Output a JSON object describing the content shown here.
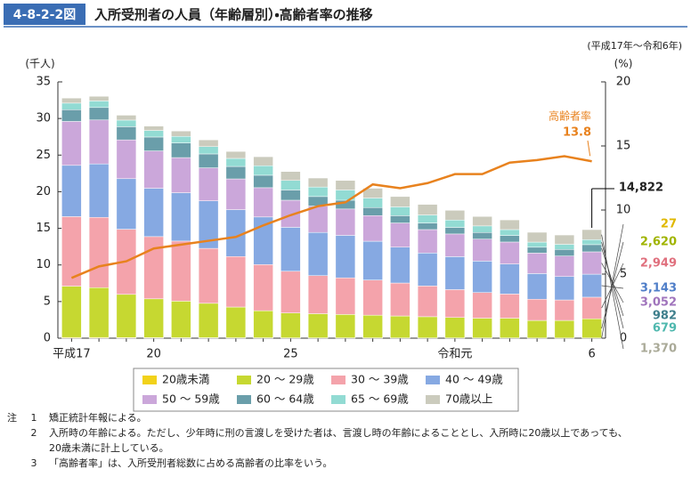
{
  "chart_data": {
    "type": "stacked_bar_line",
    "figure_number": "4-8-2-2図",
    "title": "入所受刑者の人員（年齢層別）・高齢者率の推移",
    "subtitle": "(平成17年～令和6年)",
    "y_label": "(千人)",
    "y2_label": "(%)",
    "categories": [
      "平成17",
      null,
      null,
      "20",
      null,
      null,
      null,
      null,
      "25",
      null,
      null,
      null,
      null,
      null,
      "令和元",
      null,
      null,
      null,
      null,
      "6"
    ],
    "ylim": [
      0,
      35
    ],
    "yticks": [
      0,
      5,
      10,
      15,
      20,
      25,
      30,
      35
    ],
    "y2lim": [
      0,
      20
    ],
    "y2ticks": [
      0,
      5,
      10,
      15,
      20
    ],
    "series": [
      {
        "name": "20歳未満",
        "color": "#f2d21a",
        "label_color": "#e0b800",
        "values": [
          0.1,
          0.1,
          0.08,
          0.07,
          0.06,
          0.06,
          0.05,
          0.05,
          0.04,
          0.04,
          0.04,
          0.04,
          0.03,
          0.03,
          0.03,
          0.03,
          0.03,
          0.02,
          0.02,
          0.027
        ],
        "value_labels": [
          null,
          null,
          null,
          null,
          null,
          null,
          null,
          null,
          null,
          null,
          null,
          null,
          null,
          null,
          null,
          null,
          null,
          null,
          null,
          "27"
        ]
      },
      {
        "name": "20 ～ 29歳",
        "color": "#c6d831",
        "label_color": "#a0b400",
        "values": [
          7.0,
          6.8,
          5.9,
          5.3,
          5.0,
          4.7,
          4.2,
          3.7,
          3.4,
          3.3,
          3.2,
          3.1,
          3.0,
          2.9,
          2.8,
          2.7,
          2.7,
          2.4,
          2.4,
          2.62
        ],
        "value_labels": [
          null,
          null,
          null,
          null,
          null,
          null,
          null,
          null,
          null,
          null,
          null,
          null,
          null,
          null,
          null,
          null,
          null,
          null,
          null,
          "2,620"
        ]
      },
      {
        "name": "30 ～ 39歳",
        "color": "#f4a3ab",
        "label_color": "#e0707e",
        "values": [
          9.5,
          9.6,
          8.9,
          8.5,
          8.2,
          7.5,
          6.9,
          6.3,
          5.7,
          5.2,
          5.0,
          4.8,
          4.5,
          4.2,
          3.8,
          3.5,
          3.3,
          2.9,
          2.8,
          2.949
        ],
        "value_labels": [
          null,
          null,
          null,
          null,
          null,
          null,
          null,
          null,
          null,
          null,
          null,
          null,
          null,
          null,
          null,
          null,
          null,
          null,
          null,
          "2,949"
        ]
      },
      {
        "name": "40 ～ 49歳",
        "color": "#86a9e2",
        "label_color": "#4f7ec8",
        "values": [
          7.0,
          7.3,
          6.9,
          6.6,
          6.6,
          6.5,
          6.4,
          6.5,
          6.0,
          5.9,
          5.8,
          5.3,
          4.9,
          4.5,
          4.5,
          4.3,
          4.1,
          3.5,
          3.2,
          3.143
        ],
        "value_labels": [
          null,
          null,
          null,
          null,
          null,
          null,
          null,
          null,
          null,
          null,
          null,
          null,
          null,
          null,
          null,
          null,
          null,
          null,
          null,
          "3,143"
        ]
      },
      {
        "name": "50 ～ 59歳",
        "color": "#cba7da",
        "label_color": "#a074bc",
        "values": [
          6.0,
          6.0,
          5.3,
          5.1,
          4.8,
          4.5,
          4.2,
          4.0,
          3.7,
          3.6,
          3.6,
          3.5,
          3.3,
          3.2,
          3.1,
          3.0,
          3.0,
          2.8,
          2.8,
          3.052
        ],
        "value_labels": [
          null,
          null,
          null,
          null,
          null,
          null,
          null,
          null,
          null,
          null,
          null,
          null,
          null,
          null,
          null,
          null,
          null,
          null,
          null,
          "3,052"
        ]
      },
      {
        "name": "60 ～ 64歳",
        "color": "#6a9eaa",
        "label_color": "#3f7f8c",
        "values": [
          1.6,
          1.7,
          1.8,
          1.9,
          2.0,
          1.9,
          1.7,
          1.7,
          1.4,
          1.3,
          1.2,
          1.1,
          1.0,
          0.9,
          0.9,
          0.9,
          0.9,
          0.8,
          0.9,
          0.982
        ],
        "value_labels": [
          null,
          null,
          null,
          null,
          null,
          null,
          null,
          null,
          null,
          null,
          null,
          null,
          null,
          null,
          null,
          null,
          null,
          null,
          null,
          "982"
        ]
      },
      {
        "name": "65 ～ 69歳",
        "color": "#92dbd3",
        "label_color": "#4fb8ae",
        "values": [
          0.9,
          0.9,
          0.9,
          0.9,
          0.9,
          1.0,
          1.1,
          1.3,
          1.3,
          1.3,
          1.4,
          1.3,
          1.2,
          1.1,
          1.0,
          0.9,
          0.8,
          0.7,
          0.7,
          0.679
        ],
        "value_labels": [
          null,
          null,
          null,
          null,
          null,
          null,
          null,
          null,
          null,
          null,
          null,
          null,
          null,
          null,
          null,
          null,
          null,
          null,
          null,
          "679"
        ]
      },
      {
        "name": "70歳以上",
        "color": "#cbcbbd",
        "label_color": "#aaaa98",
        "values": [
          0.69,
          0.63,
          0.67,
          0.59,
          0.73,
          0.92,
          0.95,
          1.23,
          1.22,
          1.23,
          1.3,
          1.33,
          1.41,
          1.44,
          1.33,
          1.29,
          1.32,
          1.34,
          1.27,
          1.37
        ],
        "value_labels": [
          null,
          null,
          null,
          null,
          null,
          null,
          null,
          null,
          null,
          null,
          null,
          null,
          null,
          null,
          null,
          null,
          null,
          null,
          null,
          "1,370"
        ]
      },
      {
        "name": "高齢者率",
        "color": "#e8821e",
        "axis": "y2",
        "values": [
          4.7,
          5.6,
          6.0,
          7.0,
          7.3,
          7.6,
          7.9,
          8.8,
          9.6,
          10.3,
          10.6,
          12.0,
          11.7,
          12.1,
          12.8,
          12.8,
          13.7,
          13.9,
          14.2,
          13.8
        ]
      }
    ],
    "last_total": {
      "value": 14.822,
      "label": "14,822"
    },
    "notes_heading": "注",
    "notes": [
      {
        "number": "1",
        "lines": [
          "矯正統計年報による。"
        ]
      },
      {
        "number": "2",
        "lines": [
          "入所時の年齢による。ただし、少年時に刑の言渡しを受けた者は、言渡し時の年齢によることとし、入所時に20歳以上であっても、",
          "20歳未満に計上している。"
        ]
      },
      {
        "number": "3",
        "lines": [
          "「高齢者率」は、入所受刑者総数に占める高齢者の比率をいう。"
        ]
      }
    ]
  }
}
